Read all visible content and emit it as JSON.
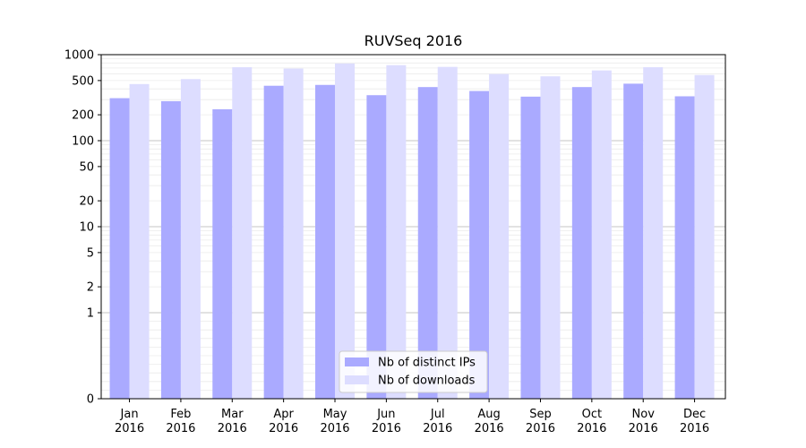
{
  "chart_data": {
    "type": "bar",
    "title": "RUVSeq 2016",
    "xlabel": "",
    "ylabel": "",
    "y_scale": "symlog",
    "ylim": [
      0,
      1000
    ],
    "y_ticks": [
      0,
      1,
      2,
      5,
      10,
      20,
      50,
      100,
      200,
      500,
      1000
    ],
    "grid": true,
    "legend_position": "bottom-center",
    "categories": [
      [
        "Jan",
        "2016"
      ],
      [
        "Feb",
        "2016"
      ],
      [
        "Mar",
        "2016"
      ],
      [
        "Apr",
        "2016"
      ],
      [
        "May",
        "2016"
      ],
      [
        "Jun",
        "2016"
      ],
      [
        "Jul",
        "2016"
      ],
      [
        "Aug",
        "2016"
      ],
      [
        "Sep",
        "2016"
      ],
      [
        "Oct",
        "2016"
      ],
      [
        "Nov",
        "2016"
      ],
      [
        "Dec",
        "2016"
      ]
    ],
    "series": [
      {
        "name": "Nb of distinct IPs",
        "color": "#aaaaff",
        "values": [
          312,
          288,
          232,
          435,
          445,
          338,
          420,
          378,
          325,
          420,
          460,
          328
        ]
      },
      {
        "name": "Nb of downloads",
        "color": "#ddddff",
        "values": [
          455,
          520,
          715,
          690,
          790,
          755,
          720,
          595,
          560,
          655,
          715,
          580
        ]
      }
    ]
  }
}
